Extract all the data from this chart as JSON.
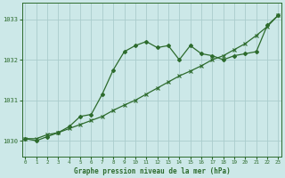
{
  "title": "Graphe pression niveau de la mer (hPa)",
  "background_color": "#cce8e8",
  "grid_color": "#aacccc",
  "line_color": "#2d6b2d",
  "x_ticks": [
    0,
    1,
    2,
    3,
    4,
    5,
    6,
    7,
    8,
    9,
    10,
    11,
    12,
    13,
    14,
    15,
    16,
    17,
    18,
    19,
    20,
    21,
    22,
    23
  ],
  "y_ticks": [
    1030,
    1031,
    1032,
    1033
  ],
  "ylim": [
    1029.6,
    1033.4
  ],
  "xlim": [
    -0.3,
    23.3
  ],
  "series1_x": [
    0,
    1,
    2,
    3,
    4,
    5,
    6,
    7,
    8,
    9,
    10,
    11,
    12,
    13,
    14,
    15,
    16,
    17,
    18,
    19,
    20,
    21,
    22,
    23
  ],
  "series1_y": [
    1030.05,
    1030.0,
    1030.1,
    1030.2,
    1030.35,
    1030.6,
    1030.65,
    1031.15,
    1031.75,
    1032.2,
    1032.35,
    1032.45,
    1032.3,
    1032.35,
    1032.0,
    1032.35,
    1032.15,
    1032.1,
    1032.0,
    1032.1,
    1032.15,
    1032.2,
    1032.85,
    1033.1
  ],
  "series2_x": [
    0,
    1,
    2,
    3,
    4,
    5,
    6,
    7,
    8,
    9,
    10,
    11,
    12,
    13,
    14,
    15,
    16,
    17,
    18,
    19,
    20,
    21,
    22,
    23
  ],
  "series2_y": [
    1030.05,
    1030.05,
    1030.15,
    1030.2,
    1030.3,
    1030.4,
    1030.5,
    1030.6,
    1030.75,
    1030.88,
    1031.0,
    1031.15,
    1031.3,
    1031.45,
    1031.6,
    1031.72,
    1031.85,
    1032.0,
    1032.1,
    1032.25,
    1032.4,
    1032.6,
    1032.82,
    1033.1
  ]
}
